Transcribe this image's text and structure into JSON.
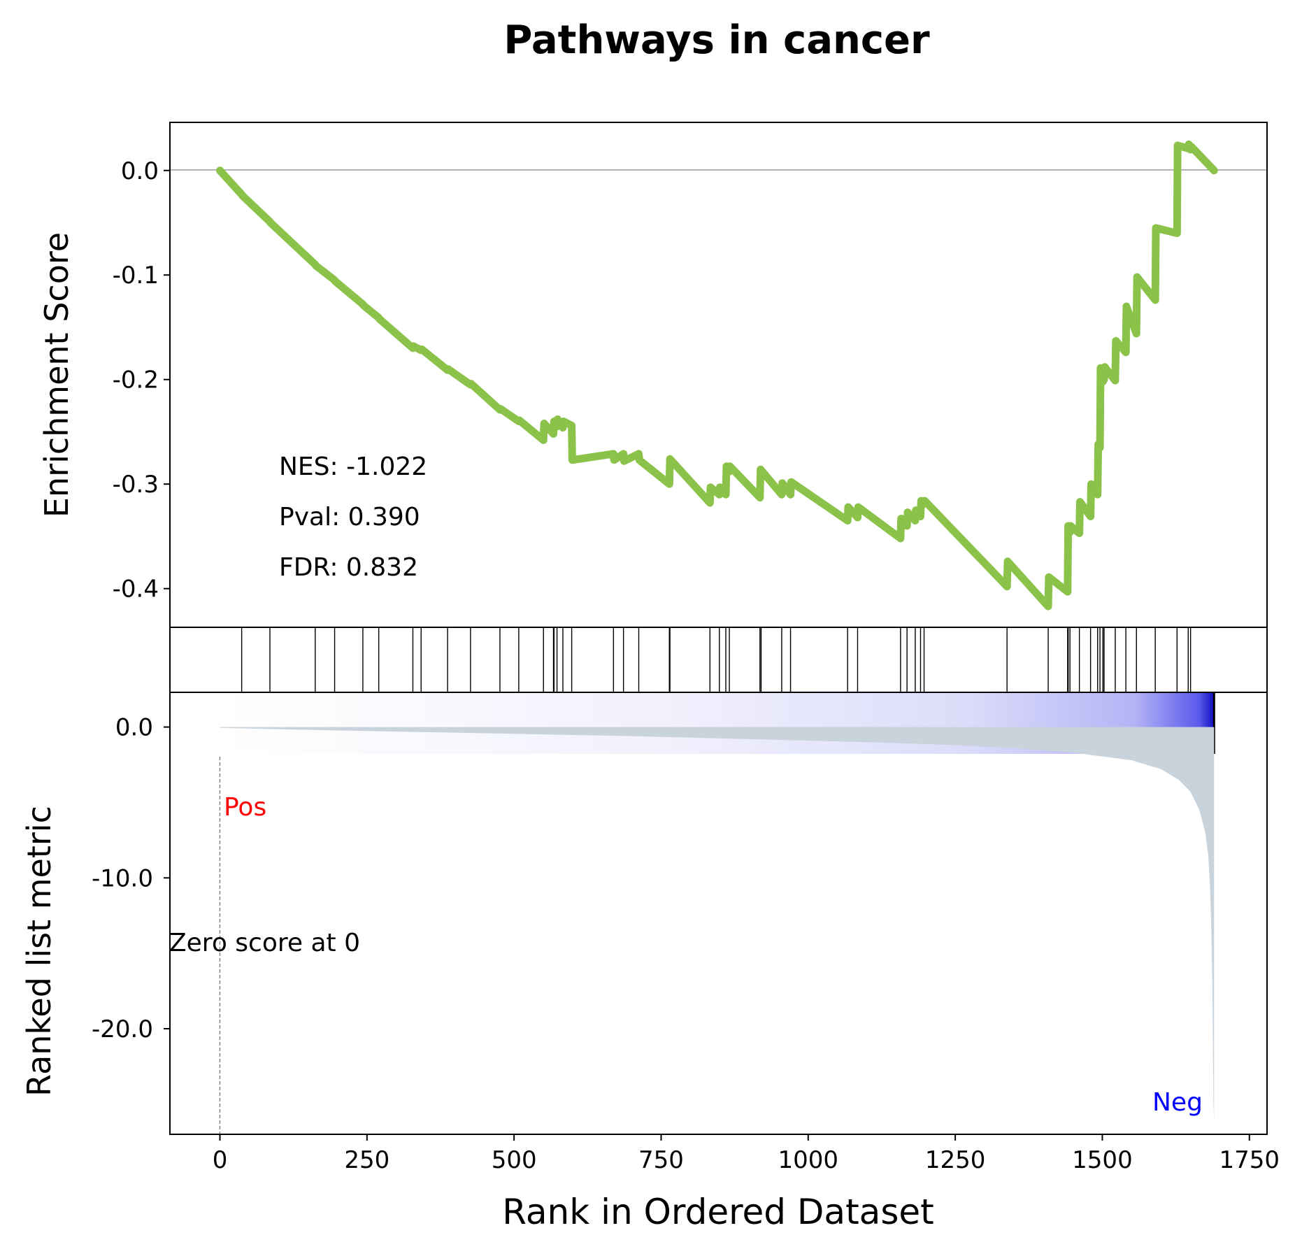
{
  "chart_data": {
    "type": "line",
    "title": "Pathways in cancer",
    "xlabel": "Rank in Ordered Dataset",
    "xlim": [
      -85,
      1780
    ],
    "x_ticks": [
      0,
      250,
      500,
      750,
      1000,
      1250,
      1500,
      1750
    ],
    "enrichment": {
      "ylabel": "Enrichment Score",
      "ylim": [
        -0.437,
        0.046
      ],
      "y_ticks": [
        0.0,
        -0.1,
        -0.2,
        -0.3,
        -0.4
      ],
      "y_tick_labels": [
        "0.0",
        "-0.1",
        "-0.2",
        "-0.3",
        "-0.4"
      ],
      "line_color": "#8bc34a",
      "series": {
        "name": "",
        "x": [
          0,
          37,
          38,
          85,
          86,
          162,
          163,
          195,
          196,
          243,
          244,
          270,
          271,
          328,
          329,
          342,
          343,
          387,
          388,
          426,
          427,
          476,
          477,
          508,
          509,
          550,
          551,
          567,
          568,
          573,
          574,
          583,
          584,
          598,
          599,
          669,
          670,
          686,
          687,
          712,
          713,
          764,
          765,
          833,
          834,
          849,
          850,
          860,
          861,
          866,
          867,
          918,
          919,
          955,
          956,
          970,
          971,
          1067,
          1068,
          1084,
          1085,
          1157,
          1158,
          1168,
          1169,
          1182,
          1183,
          1191,
          1192,
          1197,
          1198,
          1338,
          1339,
          1408,
          1409,
          1441,
          1442,
          1445,
          1446,
          1461,
          1462,
          1480,
          1481,
          1492,
          1493,
          1496,
          1497,
          1501,
          1502,
          1503,
          1504,
          1522,
          1523,
          1540,
          1541,
          1558,
          1559,
          1590,
          1591,
          1627,
          1628,
          1646,
          1647,
          1650,
          1651,
          1690
        ],
        "y": [
          0.0,
          -0.023,
          -0.024,
          -0.049,
          -0.05,
          -0.09,
          -0.091,
          -0.105,
          -0.106,
          -0.128,
          -0.129,
          -0.141,
          -0.142,
          -0.17,
          -0.168,
          -0.172,
          -0.171,
          -0.191,
          -0.19,
          -0.205,
          -0.204,
          -0.229,
          -0.228,
          -0.24,
          -0.239,
          -0.258,
          -0.242,
          -0.252,
          -0.24,
          -0.245,
          -0.238,
          -0.246,
          -0.24,
          -0.244,
          -0.277,
          -0.271,
          -0.277,
          -0.271,
          -0.278,
          -0.271,
          -0.277,
          -0.3,
          -0.276,
          -0.318,
          -0.303,
          -0.31,
          -0.303,
          -0.31,
          -0.283,
          -0.288,
          -0.283,
          -0.313,
          -0.286,
          -0.31,
          -0.299,
          -0.31,
          -0.298,
          -0.335,
          -0.322,
          -0.332,
          -0.322,
          -0.352,
          -0.333,
          -0.34,
          -0.327,
          -0.335,
          -0.325,
          -0.331,
          -0.316,
          -0.319,
          -0.316,
          -0.398,
          -0.374,
          -0.417,
          -0.389,
          -0.403,
          -0.34,
          -0.346,
          -0.34,
          -0.347,
          -0.317,
          -0.331,
          -0.3,
          -0.31,
          -0.262,
          -0.265,
          -0.189,
          -0.202,
          -0.191,
          -0.2,
          -0.188,
          -0.201,
          -0.163,
          -0.174,
          -0.13,
          -0.156,
          -0.102,
          -0.124,
          -0.055,
          -0.06,
          0.024,
          0.021,
          0.025,
          0.02,
          0.023,
          0.0
        ]
      },
      "stats": {
        "nes": "NES: -1.022",
        "pval": "Pval: 0.390",
        "fdr": "FDR: 0.832"
      }
    },
    "hits": [
      37,
      85,
      162,
      195,
      243,
      270,
      328,
      342,
      387,
      426,
      476,
      508,
      550,
      567,
      568,
      573,
      583,
      598,
      669,
      686,
      712,
      764,
      765,
      833,
      849,
      860,
      866,
      918,
      920,
      955,
      970,
      1067,
      1084,
      1157,
      1168,
      1182,
      1191,
      1197,
      1338,
      1408,
      1441,
      1442,
      1445,
      1461,
      1480,
      1492,
      1496,
      1501,
      1503,
      1522,
      1540,
      1558,
      1590,
      1627,
      1646,
      1650
    ],
    "ranked_metric": {
      "ylabel": "Ranked list metric",
      "ylim": [
        -27.0,
        2.3
      ],
      "y_ticks": [
        0.0,
        -10.0,
        -20.0
      ],
      "y_tick_labels": [
        "0.0",
        "-10.0",
        "-20.0"
      ],
      "fill_color": "#c9d3dc",
      "x": [
        0,
        100,
        300,
        500,
        700,
        900,
        1100,
        1250,
        1350,
        1450,
        1550,
        1600,
        1630,
        1650,
        1665,
        1675,
        1680,
        1683,
        1685,
        1687,
        1688,
        1689,
        1690
      ],
      "y": [
        -0.05,
        -0.15,
        -0.3,
        -0.45,
        -0.6,
        -0.8,
        -1.0,
        -1.2,
        -1.4,
        -1.7,
        -2.2,
        -2.8,
        -3.5,
        -4.3,
        -5.5,
        -7.0,
        -8.5,
        -10.5,
        -13.0,
        -17.0,
        -21.0,
        -25.0,
        -26.3
      ],
      "pos_label": "Pos",
      "neg_label": "Neg",
      "pos_color": "#ff0000",
      "neg_color": "#0000ff",
      "zero_label": "Zero score at 0"
    }
  }
}
